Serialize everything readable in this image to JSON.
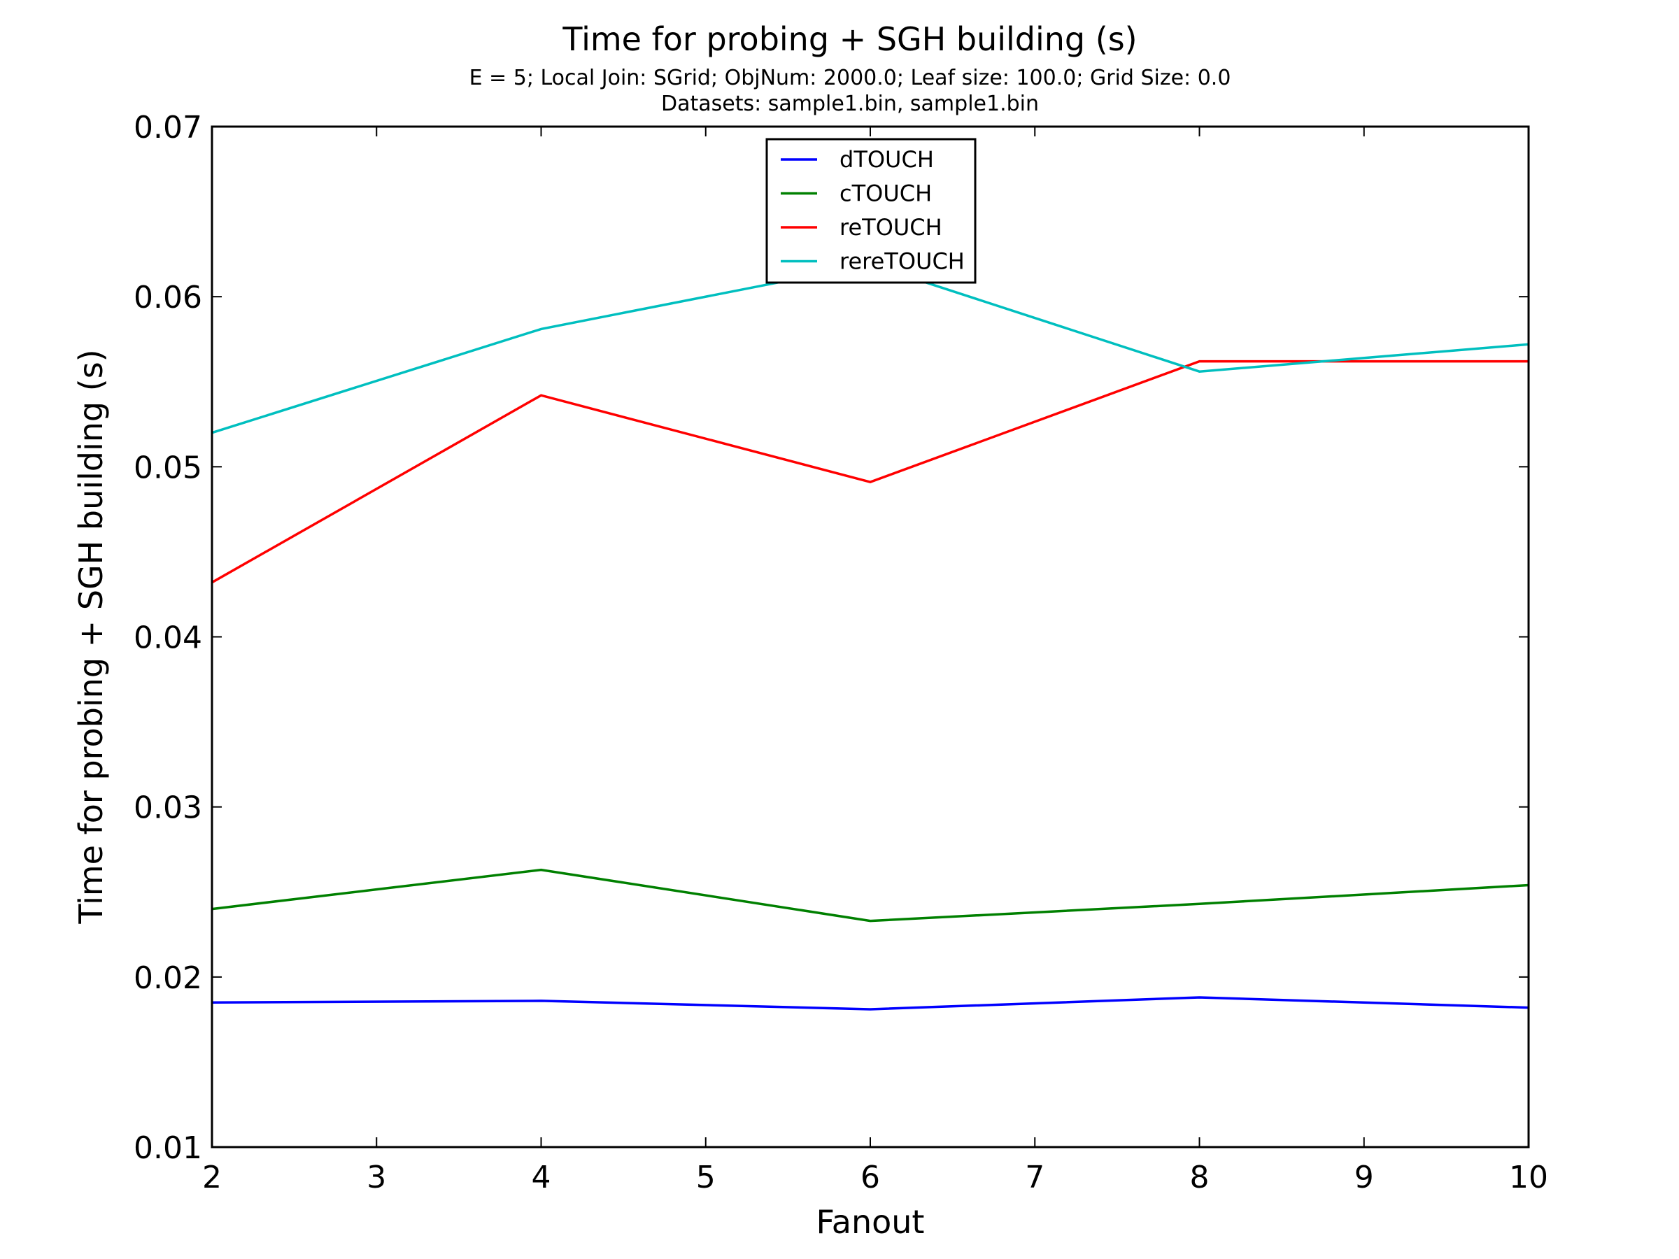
{
  "chart_data": {
    "type": "line",
    "title": "Time for probing + SGH building (s)",
    "subtitle_line1": "E = 5; Local Join: SGrid; ObjNum: 2000.0; Leaf size: 100.0; Grid Size: 0.0",
    "subtitle_line2": "Datasets: sample1.bin, sample1.bin",
    "xlabel": "Fanout",
    "ylabel": "Time for probing + SGH building (s)",
    "xlim": [
      2,
      10
    ],
    "ylim": [
      0.01,
      0.07
    ],
    "xticks": [
      "2",
      "3",
      "4",
      "5",
      "6",
      "7",
      "8",
      "9",
      "10"
    ],
    "yticks": [
      "0.01",
      "0.02",
      "0.03",
      "0.04",
      "0.05",
      "0.06",
      "0.07"
    ],
    "legend_position": "upper center",
    "grid": false,
    "x": [
      2,
      4,
      6,
      8,
      10
    ],
    "series": [
      {
        "name": "dTOUCH",
        "color": "#0000ff",
        "values": [
          0.0185,
          0.0186,
          0.0181,
          0.0188,
          0.0182
        ]
      },
      {
        "name": "cTOUCH",
        "color": "#008000",
        "values": [
          0.024,
          0.0263,
          0.0233,
          0.0243,
          0.0254
        ]
      },
      {
        "name": "reTOUCH",
        "color": "#ff0000",
        "values": [
          0.0432,
          0.0542,
          0.0491,
          0.0562,
          0.0562
        ]
      },
      {
        "name": "rereTOUCH",
        "color": "#00bfbf",
        "values": [
          0.052,
          0.0581,
          0.0619,
          0.0556,
          0.0572
        ]
      }
    ]
  }
}
